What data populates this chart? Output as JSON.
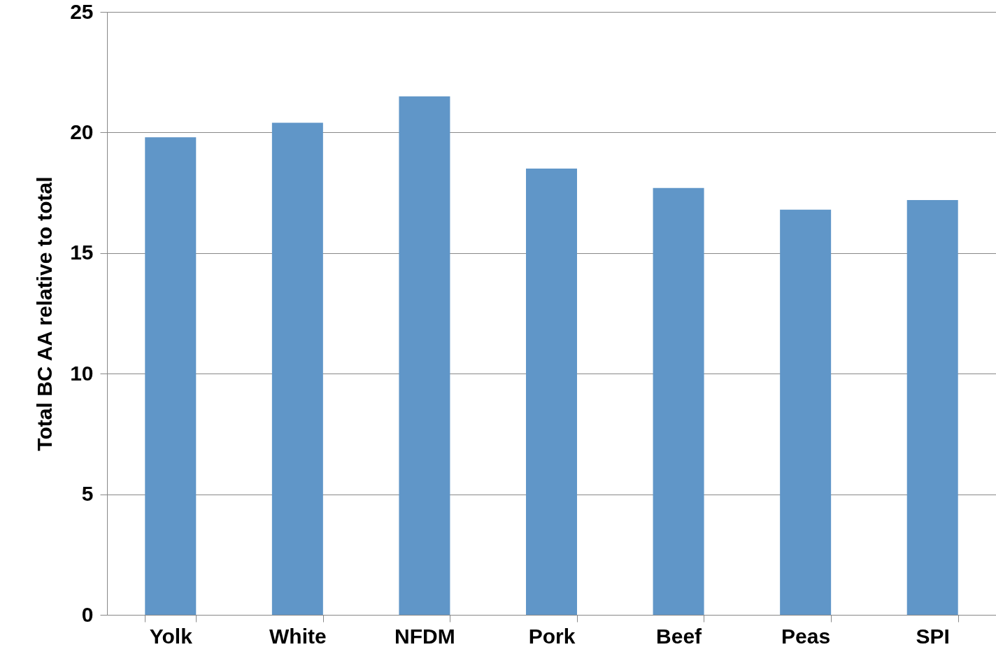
{
  "chart_data": {
    "type": "bar",
    "ylabel": "Total BC AA relative to total",
    "categories": [
      "Yolk",
      "White",
      "NFDM",
      "Pork",
      "Beef",
      "Peas",
      "SPI"
    ],
    "values": [
      19.8,
      20.4,
      21.5,
      18.5,
      17.7,
      16.8,
      17.2
    ],
    "color": "#6096c8",
    "ylim": [
      0,
      25
    ],
    "yticks": [
      0,
      5,
      10,
      15,
      20,
      25
    ],
    "grid": "y"
  }
}
